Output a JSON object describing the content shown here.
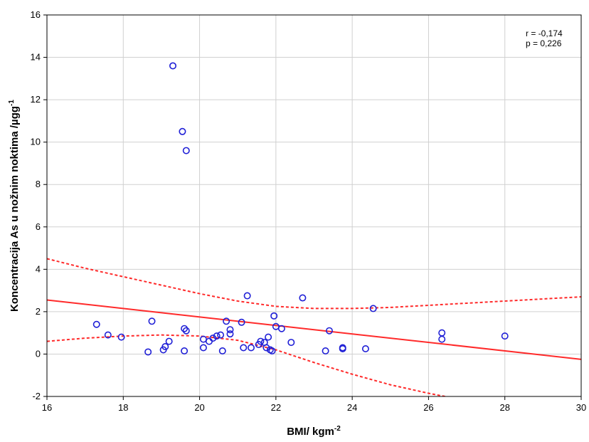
{
  "chart_data": {
    "type": "scatter",
    "xlabel": "BMI/ kgm",
    "xlabel_sup": "-2",
    "ylabel": "Koncentracija As u nožnim noktima /µgg",
    "ylabel_sup": "-1",
    "xlim": [
      16,
      30
    ],
    "ylim": [
      -2,
      16
    ],
    "x_ticks": [
      "16",
      "18",
      "20",
      "22",
      "24",
      "26",
      "28",
      "30"
    ],
    "y_ticks": [
      "-2",
      "0",
      "2",
      "4",
      "6",
      "8",
      "10",
      "12",
      "14",
      "16"
    ],
    "grid": true,
    "annotations": [
      "r = -0,174",
      "p = 0,226"
    ],
    "colors": {
      "points": "#1f1fd6",
      "fit": "#ff2a2a",
      "grid": "#d0d0d0"
    },
    "points": [
      {
        "x": 17.3,
        "y": 1.4
      },
      {
        "x": 17.6,
        "y": 0.9
      },
      {
        "x": 17.95,
        "y": 0.8
      },
      {
        "x": 18.65,
        "y": 0.1
      },
      {
        "x": 18.75,
        "y": 1.55
      },
      {
        "x": 19.05,
        "y": 0.2
      },
      {
        "x": 19.1,
        "y": 0.35
      },
      {
        "x": 19.2,
        "y": 0.6
      },
      {
        "x": 19.3,
        "y": 13.6
      },
      {
        "x": 19.55,
        "y": 10.5
      },
      {
        "x": 19.6,
        "y": 1.2
      },
      {
        "x": 19.65,
        "y": 1.1
      },
      {
        "x": 19.6,
        "y": 0.15
      },
      {
        "x": 19.65,
        "y": 9.6
      },
      {
        "x": 20.1,
        "y": 0.3
      },
      {
        "x": 20.1,
        "y": 0.7
      },
      {
        "x": 20.25,
        "y": 0.6
      },
      {
        "x": 20.35,
        "y": 0.75
      },
      {
        "x": 20.45,
        "y": 0.85
      },
      {
        "x": 20.55,
        "y": 0.9
      },
      {
        "x": 20.6,
        "y": 0.15
      },
      {
        "x": 20.7,
        "y": 1.55
      },
      {
        "x": 20.8,
        "y": 1.15
      },
      {
        "x": 20.8,
        "y": 0.95
      },
      {
        "x": 21.1,
        "y": 1.5
      },
      {
        "x": 21.15,
        "y": 0.3
      },
      {
        "x": 21.25,
        "y": 2.75
      },
      {
        "x": 21.35,
        "y": 0.3
      },
      {
        "x": 21.55,
        "y": 0.45
      },
      {
        "x": 21.6,
        "y": 0.6
      },
      {
        "x": 21.7,
        "y": 0.55
      },
      {
        "x": 21.75,
        "y": 0.3
      },
      {
        "x": 21.8,
        "y": 0.8
      },
      {
        "x": 21.85,
        "y": 0.2
      },
      {
        "x": 21.9,
        "y": 0.15
      },
      {
        "x": 21.95,
        "y": 1.8
      },
      {
        "x": 22.0,
        "y": 1.3
      },
      {
        "x": 22.15,
        "y": 1.2
      },
      {
        "x": 22.4,
        "y": 0.55
      },
      {
        "x": 22.7,
        "y": 2.65
      },
      {
        "x": 23.3,
        "y": 0.15
      },
      {
        "x": 23.4,
        "y": 1.1
      },
      {
        "x": 23.75,
        "y": 0.3
      },
      {
        "x": 23.75,
        "y": 0.25
      },
      {
        "x": 24.35,
        "y": 0.25
      },
      {
        "x": 24.55,
        "y": 2.15
      },
      {
        "x": 26.35,
        "y": 1.0
      },
      {
        "x": 26.35,
        "y": 0.7
      },
      {
        "x": 28.0,
        "y": 0.85
      }
    ],
    "fit_line": [
      {
        "x": 16,
        "y": 2.55
      },
      {
        "x": 30,
        "y": -0.25
      }
    ],
    "ci_upper": [
      {
        "x": 16,
        "y": 4.5
      },
      {
        "x": 17,
        "y": 4.05
      },
      {
        "x": 18,
        "y": 3.65
      },
      {
        "x": 19,
        "y": 3.25
      },
      {
        "x": 20,
        "y": 2.85
      },
      {
        "x": 21,
        "y": 2.5
      },
      {
        "x": 22,
        "y": 2.25
      },
      {
        "x": 23,
        "y": 2.15
      },
      {
        "x": 24,
        "y": 2.15
      },
      {
        "x": 25,
        "y": 2.2
      },
      {
        "x": 26,
        "y": 2.3
      },
      {
        "x": 27,
        "y": 2.4
      },
      {
        "x": 28,
        "y": 2.5
      },
      {
        "x": 29,
        "y": 2.6
      },
      {
        "x": 30,
        "y": 2.7
      }
    ],
    "ci_lower": [
      {
        "x": 16,
        "y": 0.6
      },
      {
        "x": 17,
        "y": 0.75
      },
      {
        "x": 18,
        "y": 0.85
      },
      {
        "x": 19,
        "y": 0.9
      },
      {
        "x": 20,
        "y": 0.85
      },
      {
        "x": 21,
        "y": 0.65
      },
      {
        "x": 22,
        "y": 0.2
      },
      {
        "x": 23,
        "y": -0.4
      },
      {
        "x": 24,
        "y": -0.95
      },
      {
        "x": 25,
        "y": -1.45
      },
      {
        "x": 26,
        "y": -1.85
      },
      {
        "x": 27,
        "y": -2.2
      },
      {
        "x": 27.5,
        "y": -2.35
      }
    ]
  }
}
